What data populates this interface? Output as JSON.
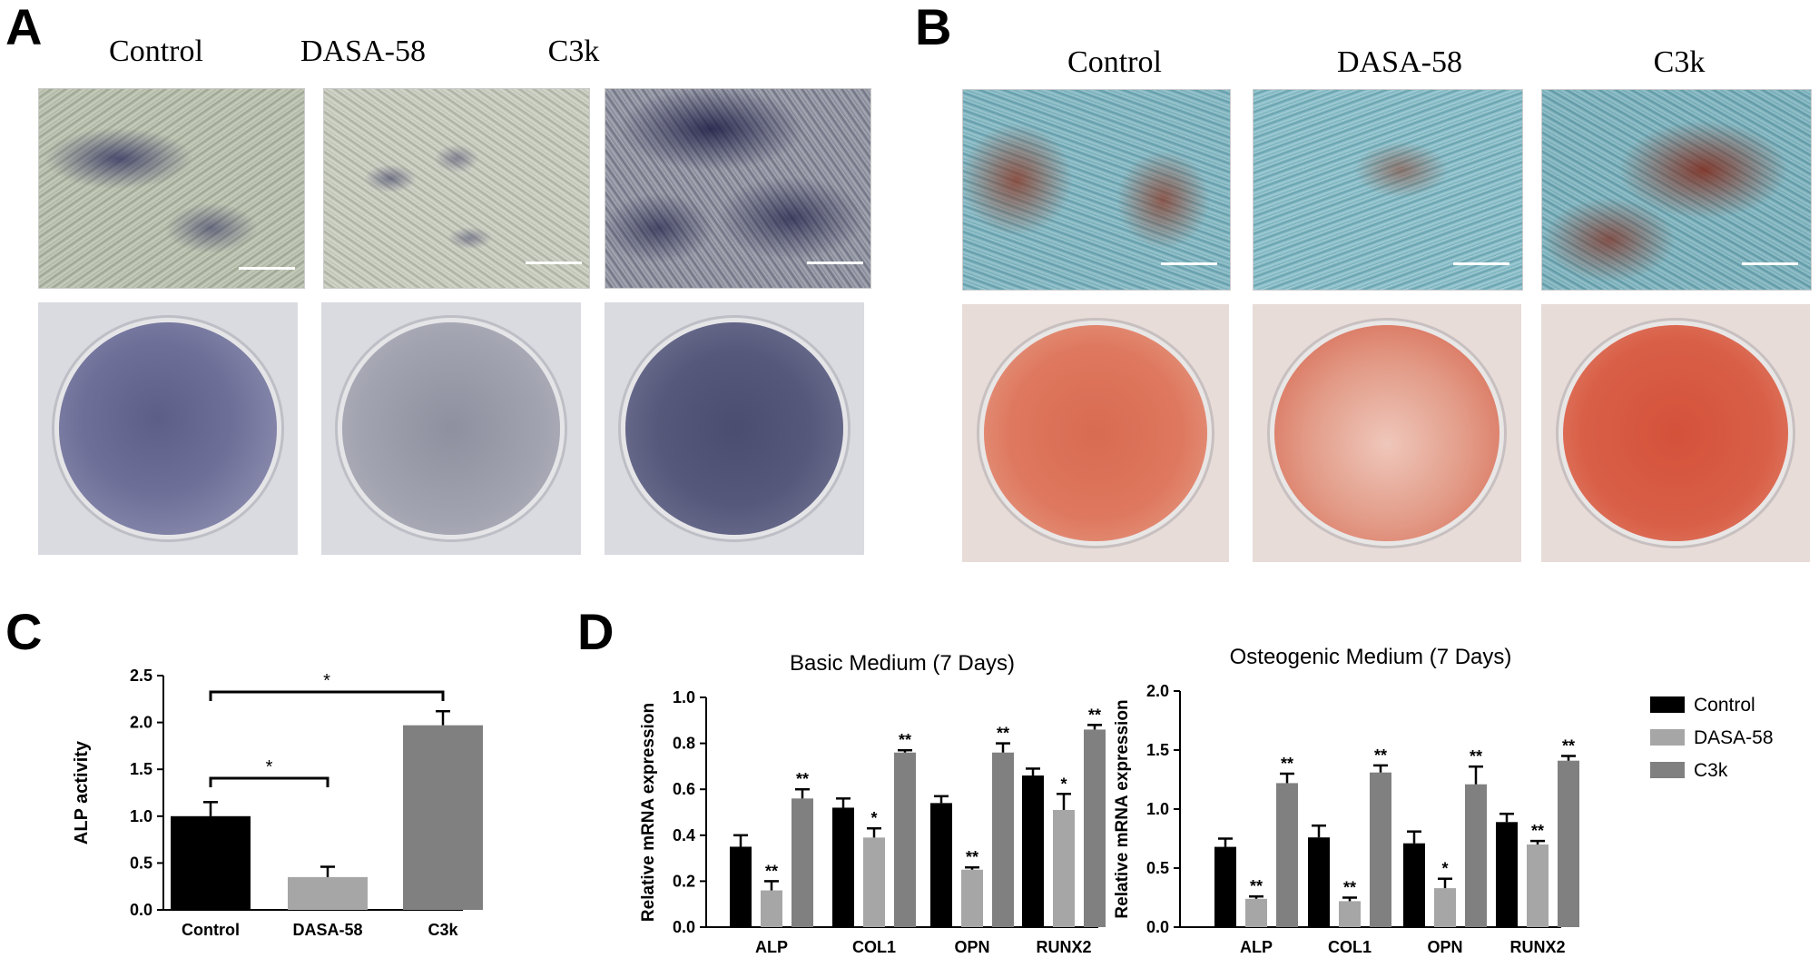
{
  "panels": {
    "a": {
      "letter": "A",
      "conditions": [
        "Control",
        "DASA-58",
        "C3k"
      ]
    },
    "b": {
      "letter": "B",
      "conditions": [
        "Control",
        "DASA-58",
        "C3k"
      ]
    },
    "c": {
      "letter": "C"
    },
    "d": {
      "letter": "D"
    }
  },
  "chart_data": [
    {
      "type": "bar",
      "panel": "C",
      "title": "",
      "ylabel": "ALP activity",
      "xlabel": "",
      "categories": [
        "Control",
        "DASA-58",
        "C3k"
      ],
      "values": [
        1.0,
        0.35,
        1.97
      ],
      "errors": [
        0.15,
        0.11,
        0.15
      ],
      "colors": [
        "#000000",
        "#a6a6a6",
        "#808080"
      ],
      "ylim": [
        0,
        2.5
      ],
      "yticks": [
        "0.0",
        "0.5",
        "1.0",
        "1.5",
        "2.0",
        "2.5"
      ],
      "significance": [
        {
          "from": "Control",
          "to": "DASA-58",
          "label": "*"
        },
        {
          "from": "Control",
          "to": "C3k",
          "label": "*"
        }
      ]
    },
    {
      "type": "bar",
      "panel": "D",
      "title": "Basic Medium (7 Days)",
      "ylabel": "Relative mRNA expression",
      "xlabel": "",
      "categories": [
        "ALP",
        "COL1",
        "OPN",
        "RUNX2"
      ],
      "ylim": [
        0,
        1.0
      ],
      "yticks": [
        "0.0",
        "0.2",
        "0.4",
        "0.6",
        "0.8",
        "1.0"
      ],
      "series": [
        {
          "name": "Control",
          "color": "#000000",
          "values": [
            0.35,
            0.52,
            0.54,
            0.66
          ],
          "errors": [
            0.05,
            0.04,
            0.03,
            0.03
          ],
          "sig": [
            "",
            "",
            "",
            ""
          ]
        },
        {
          "name": "DASA-58",
          "color": "#a6a6a6",
          "values": [
            0.16,
            0.39,
            0.25,
            0.51
          ],
          "errors": [
            0.04,
            0.04,
            0.01,
            0.07
          ],
          "sig": [
            "**",
            "*",
            "**",
            "*"
          ]
        },
        {
          "name": "C3k",
          "color": "#808080",
          "values": [
            0.56,
            0.76,
            0.76,
            0.86
          ],
          "errors": [
            0.04,
            0.01,
            0.04,
            0.02
          ],
          "sig": [
            "**",
            "**",
            "**",
            "**"
          ]
        }
      ]
    },
    {
      "type": "bar",
      "panel": "D",
      "title": "Osteogenic Medium (7 Days)",
      "ylabel": "Relative mRNA expression",
      "xlabel": "",
      "categories": [
        "ALP",
        "COL1",
        "OPN",
        "RUNX2"
      ],
      "ylim": [
        0,
        2.0
      ],
      "yticks": [
        "0.0",
        "0.5",
        "1.0",
        "1.5",
        "2.0"
      ],
      "series": [
        {
          "name": "Control",
          "color": "#000000",
          "values": [
            0.68,
            0.76,
            0.71,
            0.89
          ],
          "errors": [
            0.07,
            0.1,
            0.1,
            0.07
          ],
          "sig": [
            "",
            "",
            "",
            ""
          ]
        },
        {
          "name": "DASA-58",
          "color": "#a6a6a6",
          "values": [
            0.24,
            0.22,
            0.33,
            0.7
          ],
          "errors": [
            0.02,
            0.03,
            0.08,
            0.03
          ],
          "sig": [
            "**",
            "**",
            "*",
            "**"
          ]
        },
        {
          "name": "C3k",
          "color": "#808080",
          "values": [
            1.22,
            1.31,
            1.21,
            1.41
          ],
          "errors": [
            0.08,
            0.06,
            0.15,
            0.04
          ],
          "sig": [
            "**",
            "**",
            "**",
            "**"
          ]
        }
      ]
    }
  ],
  "legend": {
    "placement": "right",
    "items": [
      {
        "label": "Control",
        "color": "#000000"
      },
      {
        "label": "DASA-58",
        "color": "#a6a6a6"
      },
      {
        "label": "C3k",
        "color": "#808080"
      }
    ]
  }
}
